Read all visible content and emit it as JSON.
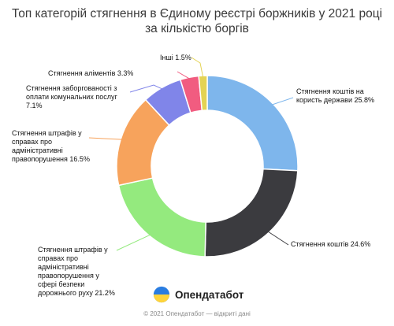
{
  "chart_data": {
    "type": "pie",
    "title": "Топ категорій стягнення в Єдиному реєстрі боржників у 2021 році за кількістю боргів",
    "slices": [
      {
        "label": "Стягнення коштів на користь держави",
        "value": 25.8,
        "value_text": "25.8%",
        "color": "#7eb6ec"
      },
      {
        "label": "Стягнення коштів",
        "value": 24.6,
        "value_text": "24.6%",
        "color": "#3b3b3f"
      },
      {
        "label": "Стягнення штрафів у справах про адміністративні правопорушення у сфері безпеки дорожнього руху",
        "value": 21.2,
        "value_text": "21.2%",
        "color": "#94ea7e"
      },
      {
        "label": "Стягнення штрафів у справах про адміністративні правопорушення",
        "value": 16.5,
        "value_text": "16.5%",
        "color": "#f7a35c"
      },
      {
        "label": "Стягнення заборгованості з оплати комунальних послуг",
        "value": 7.1,
        "value_text": "7.1%",
        "color": "#8085e9"
      },
      {
        "label": "Стягнення аліментів",
        "value": 3.3,
        "value_text": "3.3%",
        "color": "#f15c80"
      },
      {
        "label": "Інші",
        "value": 1.5,
        "value_text": "1.5%",
        "color": "#e4d354"
      }
    ]
  },
  "brand": {
    "name": "Опендатабот"
  },
  "footer": {
    "text": "© 2021 Опендатабот — відкриті дані"
  }
}
